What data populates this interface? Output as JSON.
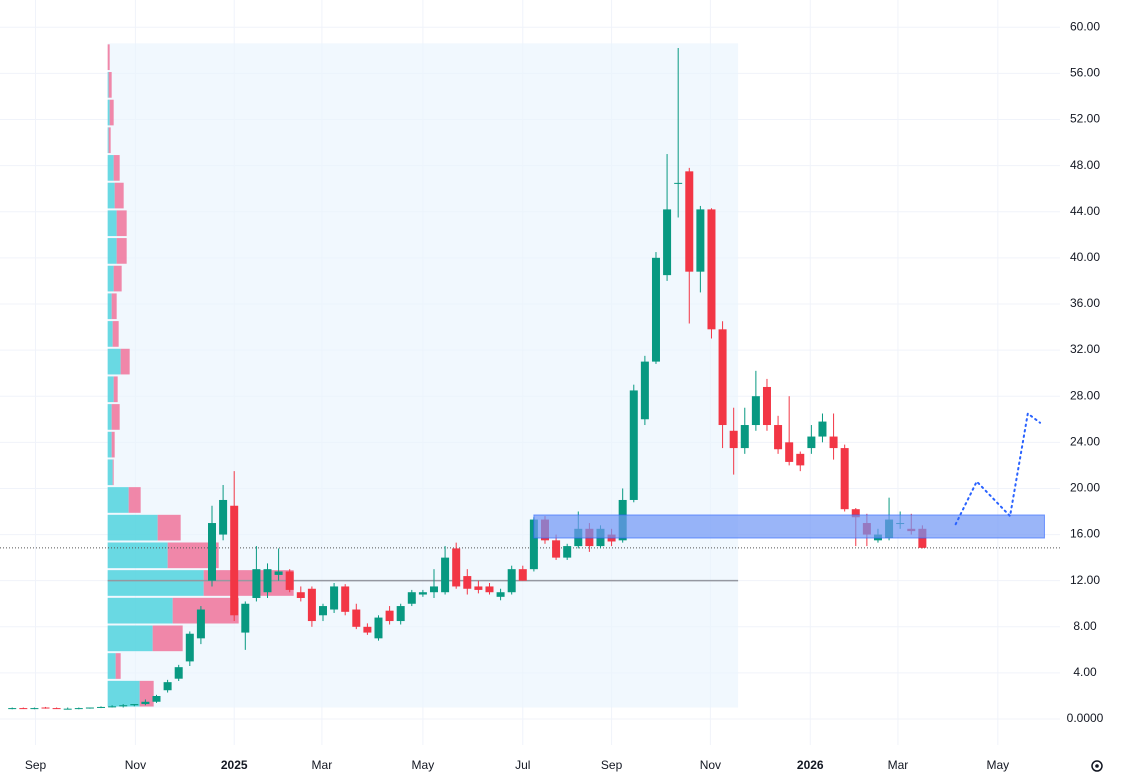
{
  "chart_data": {
    "type": "candlestick",
    "x": [
      -12,
      -11,
      -10,
      -9,
      -8,
      -7,
      -6,
      -5,
      -4,
      -3,
      -2,
      -1,
      0,
      1,
      2,
      3,
      4,
      5,
      6,
      7,
      8,
      9,
      10,
      11,
      12,
      13,
      14,
      15,
      16,
      17,
      18,
      19,
      20,
      21,
      22,
      23,
      24,
      25,
      26,
      27,
      28,
      29,
      30,
      31,
      32,
      33,
      34,
      35,
      36,
      37,
      38,
      39,
      40,
      41,
      42,
      43,
      44,
      45,
      46,
      47,
      48,
      49,
      50,
      51,
      52,
      53,
      54,
      55,
      56,
      57,
      58,
      59,
      60,
      61,
      62,
      63,
      64,
      65,
      66,
      67,
      68,
      69,
      70
    ],
    "open": [
      0.9,
      0.95,
      0.9,
      1.0,
      0.95,
      0.9,
      0.9,
      0.95,
      1.0,
      1.1,
      1.1,
      1.2,
      1.3,
      1.5,
      2.5,
      3.5,
      5.0,
      7.0,
      12.0,
      16.0,
      18.5,
      7.5,
      10.5,
      11.0,
      12.5,
      12.8,
      11.0,
      11.3,
      9.0,
      9.5,
      11.5,
      9.5,
      8.0,
      7.0,
      9.4,
      8.5,
      10.0,
      10.8,
      11.0,
      11.0,
      14.8,
      12.4,
      11.5,
      11.5,
      10.6,
      11.0,
      13.0,
      13.0,
      17.3,
      15.5,
      14.0,
      15.0,
      16.5,
      15.0,
      16.0,
      15.5,
      19.0,
      26.0,
      31.0,
      38.5,
      46.5,
      47.5,
      38.8,
      44.2,
      33.8,
      25.0,
      23.5,
      25.5,
      28.8,
      25.5,
      24.0,
      23.0,
      23.5,
      24.5,
      24.5,
      23.5,
      18.2,
      17.0,
      15.5,
      15.7,
      17.0,
      16.5,
      16.5
    ],
    "high": [
      1.0,
      1.0,
      1.0,
      1.05,
      1.0,
      1.0,
      1.0,
      1.0,
      1.1,
      1.2,
      1.3,
      1.3,
      1.7,
      2.1,
      3.4,
      4.7,
      7.6,
      9.8,
      18.5,
      20.3,
      21.5,
      10.2,
      15.0,
      13.5,
      14.8,
      13.0,
      11.5,
      11.5,
      10.0,
      11.8,
      11.7,
      10.0,
      8.3,
      9.0,
      9.8,
      10.0,
      11.2,
      11.2,
      13.0,
      15.0,
      15.3,
      13.0,
      12.0,
      11.8,
      11.3,
      13.3,
      13.3,
      17.5,
      17.6,
      16.0,
      15.2,
      18.0,
      17.0,
      16.8,
      16.5,
      20.0,
      29.0,
      31.5,
      40.5,
      49.0,
      58.2,
      47.8,
      44.5,
      44.3,
      34.5,
      27.0,
      27.0,
      30.2,
      29.5,
      26.3,
      28.0,
      23.2,
      25.5,
      26.5,
      26.5,
      23.8,
      18.3,
      17.8,
      16.5,
      19.2,
      18.0,
      17.8,
      16.8
    ],
    "low": [
      0.85,
      0.9,
      0.85,
      0.9,
      0.9,
      0.85,
      0.85,
      0.9,
      0.95,
      1.0,
      1.0,
      1.1,
      1.2,
      1.4,
      2.3,
      3.3,
      4.6,
      6.5,
      11.5,
      15.5,
      8.5,
      6.0,
      10.2,
      10.5,
      12.0,
      11.0,
      10.2,
      8.0,
      8.5,
      9.2,
      9.0,
      7.8,
      7.3,
      6.8,
      8.2,
      8.2,
      9.8,
      10.6,
      10.5,
      10.8,
      11.3,
      10.8,
      10.9,
      10.8,
      10.3,
      10.8,
      12.0,
      12.8,
      15.2,
      13.8,
      13.8,
      14.8,
      14.5,
      14.8,
      15.0,
      15.3,
      18.8,
      25.5,
      30.8,
      38.0,
      43.5,
      34.3,
      37.0,
      33.0,
      23.5,
      21.2,
      23.0,
      25.0,
      25.0,
      23.0,
      22.0,
      21.5,
      23.0,
      24.0,
      22.5,
      18.0,
      15.0,
      15.0,
      15.3,
      15.5,
      16.5,
      16.0,
      14.8
    ],
    "close": [
      0.95,
      0.9,
      0.95,
      0.95,
      0.9,
      0.9,
      0.95,
      1.0,
      1.05,
      1.1,
      1.2,
      1.3,
      1.5,
      2.0,
      3.2,
      4.5,
      7.4,
      9.5,
      17.0,
      19.0,
      9.0,
      10.0,
      13.0,
      13.0,
      12.8,
      11.2,
      10.5,
      8.5,
      9.8,
      11.5,
      9.3,
      8.0,
      7.5,
      8.8,
      8.5,
      9.8,
      11.0,
      11.0,
      11.5,
      14.0,
      11.5,
      11.3,
      11.2,
      11.0,
      11.0,
      13.0,
      12.0,
      17.3,
      15.5,
      14.0,
      15.0,
      16.5,
      15.0,
      16.5,
      15.4,
      19.0,
      28.5,
      31.0,
      40.0,
      44.2,
      46.5,
      38.8,
      44.2,
      33.8,
      25.5,
      23.5,
      25.5,
      28.0,
      25.5,
      23.4,
      22.3,
      22.0,
      24.5,
      25.8,
      23.5,
      18.2,
      17.5,
      16.0,
      16.0,
      17.3,
      17.0,
      16.3,
      14.85
    ],
    "up_color": "#089981",
    "down_color": "#f23645",
    "xlim": [
      -13.1,
      82.4
    ],
    "xticks": [
      {
        "value": -9.9,
        "label": "Sep"
      },
      {
        "value": -0.9,
        "label": "Nov"
      },
      {
        "value": 8.0,
        "label": "2025"
      },
      {
        "value": 15.9,
        "label": "Mar"
      },
      {
        "value": 25.0,
        "label": "May"
      },
      {
        "value": 34.0,
        "label": "Jul"
      },
      {
        "value": 42.0,
        "label": "Sep"
      },
      {
        "value": 50.9,
        "label": "Nov"
      },
      {
        "value": 59.9,
        "label": "2026"
      },
      {
        "value": 67.8,
        "label": "Mar"
      },
      {
        "value": 76.8,
        "label": "May"
      }
    ],
    "ylim": [
      -2.25,
      62.36
    ],
    "yticks": [
      {
        "value": 0,
        "label": "0.0000"
      },
      {
        "value": 4,
        "label": "4.00"
      },
      {
        "value": 8,
        "label": "8.00"
      },
      {
        "value": 12,
        "label": "12.00"
      },
      {
        "value": 16,
        "label": "16.00"
      },
      {
        "value": 20,
        "label": "20.00"
      },
      {
        "value": 24,
        "label": "24.00"
      },
      {
        "value": 28,
        "label": "28.00"
      },
      {
        "value": 32,
        "label": "32.00"
      },
      {
        "value": 36,
        "label": "36.00"
      },
      {
        "value": 40,
        "label": "40.00"
      },
      {
        "value": 44,
        "label": "44.00"
      },
      {
        "value": 48,
        "label": "48.00"
      },
      {
        "value": 52,
        "label": "52.00"
      },
      {
        "value": 56,
        "label": "56.00"
      },
      {
        "value": 60,
        "label": "60.00"
      }
    ],
    "grid": true,
    "volume_profile": {
      "x_range": [
        -3.4,
        53.4
      ],
      "bins": [
        1.0,
        3.4,
        5.8,
        8.2,
        10.6,
        13.0,
        15.4,
        17.8,
        20.2,
        22.6,
        25.0,
        27.4,
        29.8,
        32.2,
        34.6,
        37.0,
        39.4,
        41.8,
        44.2,
        46.6,
        49.0,
        51.4,
        53.8,
        56.2,
        58.6
      ],
      "up": [
        32,
        8,
        45,
        65,
        96,
        60,
        50,
        21,
        5,
        4,
        4,
        6,
        13,
        5,
        4,
        6,
        9,
        9,
        7,
        6,
        1,
        2,
        1,
        0
      ],
      "down": [
        14,
        5,
        30,
        66,
        90,
        51,
        23,
        12,
        1,
        3,
        8,
        4,
        9,
        6,
        5,
        8,
        10,
        10,
        9,
        6,
        2,
        4,
        3,
        2
      ],
      "up_color": "#5ad5e0",
      "down_color": "#f07aa0",
      "poc": 12
    },
    "zone": {
      "x": [
        35,
        81
      ],
      "low": 15.7,
      "high": 17.7,
      "color": "#6f96f5"
    },
    "projection": {
      "x": [
        73,
        74.9,
        77.9,
        79.5,
        80.6
      ],
      "y": [
        16.9,
        20.6,
        17.6,
        26.5,
        25.7
      ],
      "color": "#2962ff"
    },
    "last_price": 14.85
  }
}
